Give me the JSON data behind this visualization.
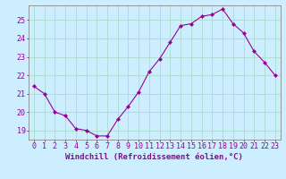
{
  "x": [
    0,
    1,
    2,
    3,
    4,
    5,
    6,
    7,
    8,
    9,
    10,
    11,
    12,
    13,
    14,
    15,
    16,
    17,
    18,
    19,
    20,
    21,
    22,
    23
  ],
  "y": [
    21.4,
    21.0,
    20.0,
    19.8,
    19.1,
    19.0,
    18.7,
    18.7,
    19.6,
    20.3,
    21.1,
    22.2,
    22.9,
    23.8,
    24.7,
    24.8,
    25.2,
    25.3,
    25.6,
    24.8,
    24.3,
    23.3,
    22.7,
    22.0
  ],
  "line_color": "#990099",
  "marker": "D",
  "marker_size": 2,
  "bg_color": "#cceeff",
  "grid_color": "#aaddcc",
  "xlabel": "Windchill (Refroidissement éolien,°C)",
  "xlabel_color": "#990099",
  "tick_color": "#990099",
  "ylim": [
    18.5,
    25.8
  ],
  "xlim": [
    -0.5,
    23.5
  ],
  "yticks": [
    19,
    20,
    21,
    22,
    23,
    24,
    25
  ],
  "xticks": [
    0,
    1,
    2,
    3,
    4,
    5,
    6,
    7,
    8,
    9,
    10,
    11,
    12,
    13,
    14,
    15,
    16,
    17,
    18,
    19,
    20,
    21,
    22,
    23
  ],
  "xlabel_fontsize": 6.5,
  "tick_fontsize": 6.0
}
